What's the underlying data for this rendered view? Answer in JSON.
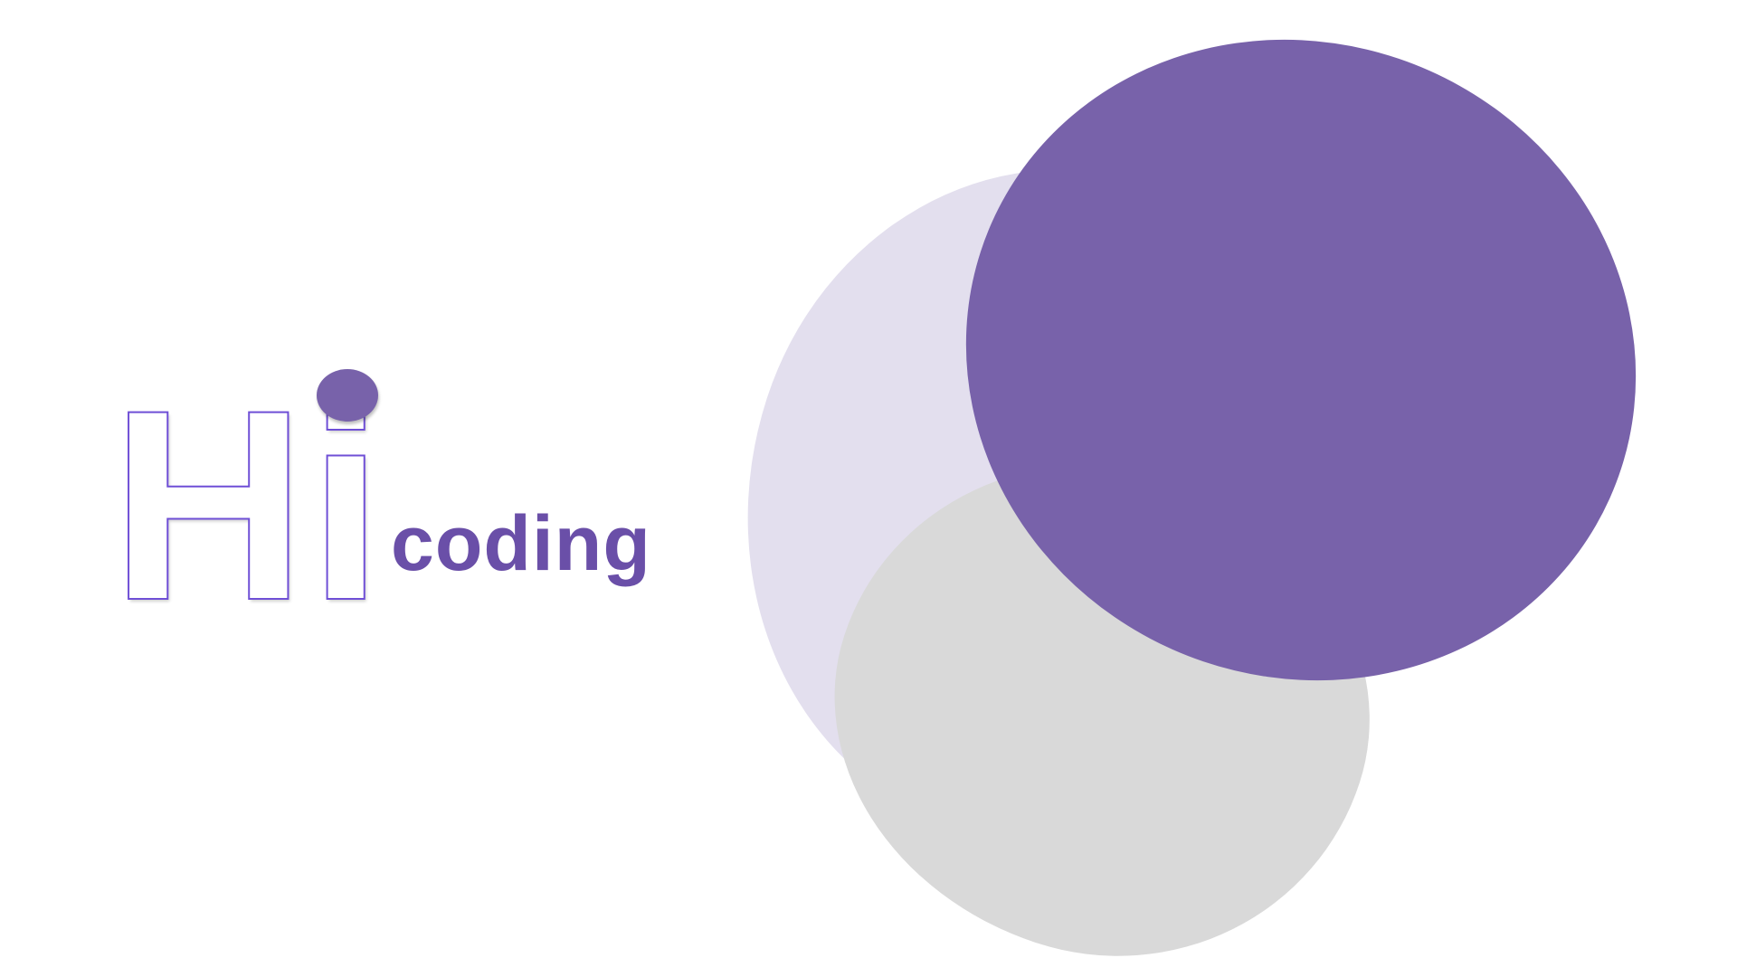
{
  "logo": {
    "big_text": "Hi",
    "small_text": "coding"
  },
  "colors": {
    "brand_purple": "#7862aa",
    "outline_purple": "#6f4fd6",
    "lavender": "#e3dfee",
    "gray": "#d9d9d9",
    "background": "#ffffff"
  }
}
